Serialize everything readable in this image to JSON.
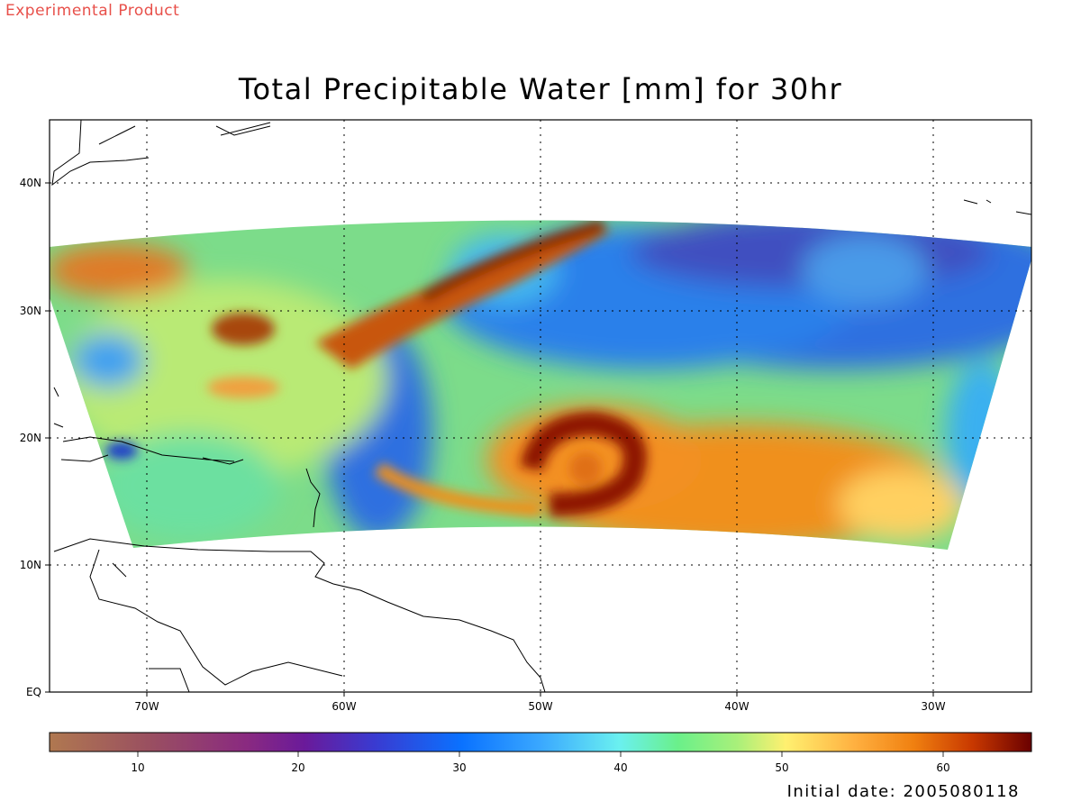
{
  "header": {
    "tag": "Experimental Product",
    "title": "Total Precipitable Water [mm] for 30hr"
  },
  "map": {
    "lat_labels": [
      "40N",
      "30N",
      "20N",
      "10N",
      "EQ"
    ],
    "lon_labels": [
      "70W",
      "60W",
      "50W",
      "40W",
      "30W"
    ]
  },
  "colorbar": {
    "labels": [
      "10",
      "20",
      "30",
      "40",
      "50",
      "60"
    ]
  },
  "footer": {
    "initial_date": "Initial date: 2005080118"
  },
  "colors": {
    "tag": "#e8504a",
    "storm": "#8b0c00",
    "moist": "#f08a1e",
    "mid": "#8fe07a",
    "dry": "#2f73e0",
    "driest": "#4a3fb0"
  }
}
